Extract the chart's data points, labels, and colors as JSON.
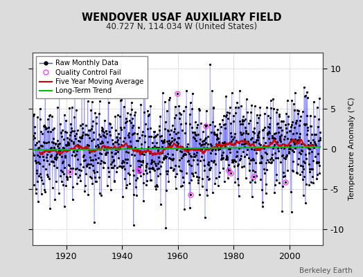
{
  "title": "WENDOVER USAF AUXILIARY FIELD",
  "subtitle": "40.727 N, 114.034 W (United States)",
  "ylabel": "Temperature Anomaly (°C)",
  "credit": "Berkeley Earth",
  "ylim": [
    -12,
    12
  ],
  "yticks": [
    -10,
    -5,
    0,
    5,
    10
  ],
  "year_start": 1908,
  "year_end": 2011,
  "xlim": [
    1908,
    2012
  ],
  "x_ticks": [
    1920,
    1940,
    1960,
    1980,
    2000
  ],
  "fig_bg_color": "#dcdcdc",
  "plot_bg_color": "#ffffff",
  "raw_line_color": "#4444ff",
  "raw_dot_color": "#000000",
  "qc_color": "#ff44ff",
  "moving_avg_color": "#cc0000",
  "trend_color": "#00bb00",
  "seed": 42,
  "n_months": 1224,
  "noise_std": 2.8,
  "trend_slope": 0.004,
  "trend_intercept": -0.15,
  "moving_avg_window": 60,
  "figwidth": 5.24,
  "figheight": 4.0,
  "dpi": 100
}
